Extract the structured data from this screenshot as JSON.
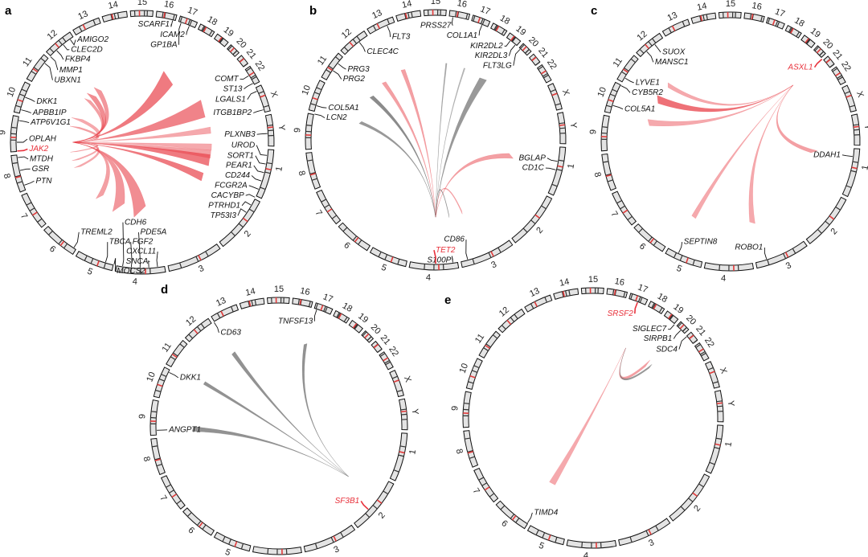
{
  "colors": {
    "highlight": "#e8323c",
    "link_red": "#e8414a",
    "link_gray": "#6e6e6e",
    "ring_fill": "#e4e4e4",
    "centromere": "#e23b3b"
  },
  "chromosomes": [
    "1",
    "2",
    "3",
    "4",
    "5",
    "6",
    "7",
    "8",
    "9",
    "10",
    "11",
    "12",
    "13",
    "14",
    "15",
    "16",
    "17",
    "18",
    "19",
    "20",
    "21",
    "22",
    "X",
    "Y"
  ],
  "panels": [
    {
      "letter": "a",
      "source_gene": "JAK2",
      "link_color": "red",
      "genes": [
        {
          "name": "AMIGO2"
        },
        {
          "name": "CLEC2D"
        },
        {
          "name": "FKBP4"
        },
        {
          "name": "MMP1"
        },
        {
          "name": "UBXN1"
        },
        {
          "name": "SCARF1"
        },
        {
          "name": "GP1BA"
        },
        {
          "name": "ICAM2"
        },
        {
          "name": "COMT"
        },
        {
          "name": "ST13"
        },
        {
          "name": "LGALS1"
        },
        {
          "name": "ITGB1BP2"
        },
        {
          "name": "PLXNB3"
        },
        {
          "name": "UROD"
        },
        {
          "name": "SORT1"
        },
        {
          "name": "PEAR1"
        },
        {
          "name": "CD244"
        },
        {
          "name": "FCGR2A"
        },
        {
          "name": "CACYBP"
        },
        {
          "name": "PTRHD1"
        },
        {
          "name": "TP53I3"
        },
        {
          "name": "TREML2"
        },
        {
          "name": "TBCA"
        },
        {
          "name": "MOCS2"
        },
        {
          "name": "CDH6"
        },
        {
          "name": "FGF2"
        },
        {
          "name": "PDE5A"
        },
        {
          "name": "SNCA"
        },
        {
          "name": "CXCL11"
        },
        {
          "name": "PTN"
        },
        {
          "name": "GSR"
        },
        {
          "name": "MTDH"
        },
        {
          "name": "OPLAH"
        },
        {
          "name": "JAK2",
          "highlight": true
        },
        {
          "name": "ATP6V1G1"
        },
        {
          "name": "APBB1IP"
        },
        {
          "name": "DKK1"
        }
      ]
    },
    {
      "letter": "b",
      "source_gene": "TET2",
      "link_color": "mixed",
      "genes": [
        {
          "name": "FLT3"
        },
        {
          "name": "CLEC4C"
        },
        {
          "name": "PRG3"
        },
        {
          "name": "PRG2"
        },
        {
          "name": "COL5A1"
        },
        {
          "name": "LCN2"
        },
        {
          "name": "PRSS27"
        },
        {
          "name": "COL1A1"
        },
        {
          "name": "KIR2DL2"
        },
        {
          "name": "KIR2DL3"
        },
        {
          "name": "FLT3LG"
        },
        {
          "name": "BGLAP"
        },
        {
          "name": "CD1C"
        },
        {
          "name": "CD86"
        },
        {
          "name": "S100P"
        },
        {
          "name": "TET2",
          "highlight": true
        }
      ]
    },
    {
      "letter": "c",
      "source_gene": "ASXL1",
      "link_color": "red",
      "genes": [
        {
          "name": "SUOX"
        },
        {
          "name": "MANSC1"
        },
        {
          "name": "LYVE1"
        },
        {
          "name": "CYB5R2"
        },
        {
          "name": "COL5A1"
        },
        {
          "name": "ASXL1",
          "highlight": true
        },
        {
          "name": "DDAH1"
        },
        {
          "name": "ROBO1"
        },
        {
          "name": "SEPTIN8"
        }
      ]
    },
    {
      "letter": "d",
      "source_gene": "SF3B1",
      "link_color": "gray",
      "genes": [
        {
          "name": "CD63"
        },
        {
          "name": "TNFSF13"
        },
        {
          "name": "DKK1"
        },
        {
          "name": "ANGPT1"
        },
        {
          "name": "SF3B1",
          "highlight": true
        }
      ]
    },
    {
      "letter": "e",
      "source_gene": "SRSF2",
      "link_color": "mixed",
      "genes": [
        {
          "name": "SRSF2",
          "highlight": true
        },
        {
          "name": "SIGLEC7"
        },
        {
          "name": "SIRPB1"
        },
        {
          "name": "SDC4"
        },
        {
          "name": "TIMD4"
        }
      ]
    }
  ]
}
